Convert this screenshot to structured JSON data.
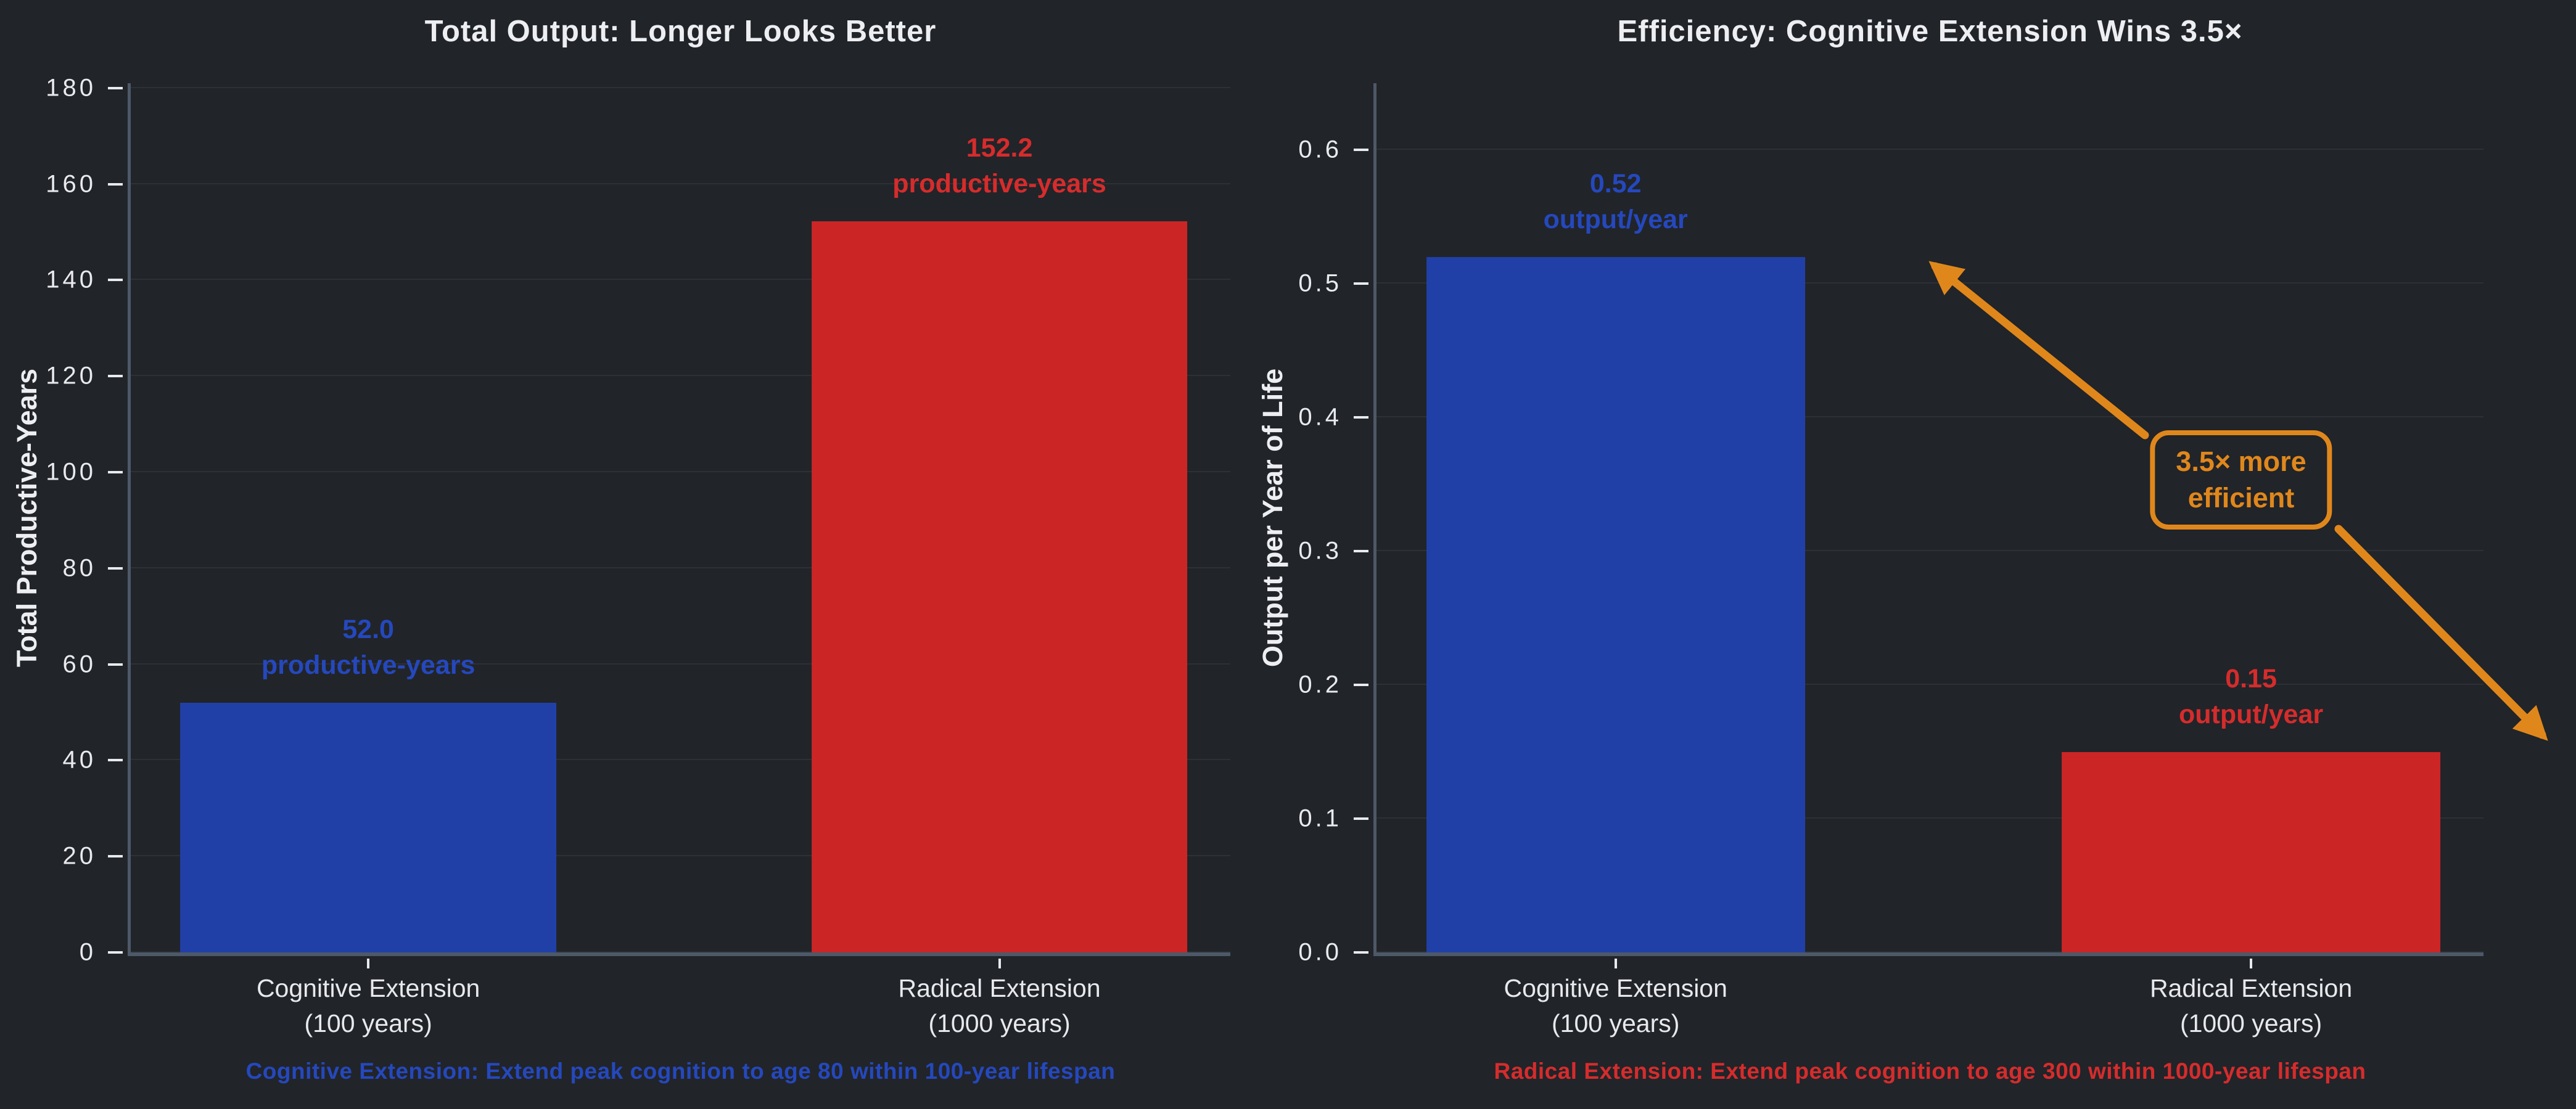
{
  "colors": {
    "background": "#212429",
    "axis": "#4d5968",
    "tick_text": "#e8eaed",
    "grid": "rgba(255,255,255,0.055)",
    "title_text": "#edeef1",
    "blue_bar": "#2140a7",
    "blue_text": "#2548bd",
    "red_bar": "#cb2526",
    "red_text": "#d62c2c",
    "orange": "#e0871c"
  },
  "chart_data": [
    {
      "type": "bar",
      "title": "Total Output: Longer Looks Better",
      "ylabel": "Total Productive-Years",
      "xlabel": "",
      "ylim": [
        0,
        181
      ],
      "grid": true,
      "legend": "none",
      "yticks": [
        {
          "value": 0,
          "label": "0"
        },
        {
          "value": 20,
          "label": "20"
        },
        {
          "value": 40,
          "label": "40"
        },
        {
          "value": 60,
          "label": "60"
        },
        {
          "value": 80,
          "label": "80"
        },
        {
          "value": 100,
          "label": "100"
        },
        {
          "value": 120,
          "label": "120"
        },
        {
          "value": 140,
          "label": "140"
        },
        {
          "value": 160,
          "label": "160"
        },
        {
          "value": 180,
          "label": "180"
        }
      ],
      "bars": [
        {
          "category_line1": "Cognitive Extension",
          "category_line2": "(100 years)",
          "value": 52.0,
          "label_line1": "52.0",
          "label_line2": "productive-years",
          "color_key": "blue"
        },
        {
          "category_line1": "Radical Extension",
          "category_line2": "(1000 years)",
          "value": 152.2,
          "label_line1": "152.2",
          "label_line2": "productive-years",
          "color_key": "red"
        }
      ],
      "caption": "Cognitive Extension: Extend peak cognition to age 80 within 100-year lifespan",
      "caption_color_key": "blue"
    },
    {
      "type": "bar",
      "title": "Efficiency: Cognitive Extension Wins 3.5×",
      "ylabel": "Output per Year of Life",
      "xlabel": "",
      "ylim": [
        0,
        0.65
      ],
      "grid": true,
      "legend": "none",
      "yticks": [
        {
          "value": 0.0,
          "label": "0.0"
        },
        {
          "value": 0.1,
          "label": "0.1"
        },
        {
          "value": 0.2,
          "label": "0.2"
        },
        {
          "value": 0.3,
          "label": "0.3"
        },
        {
          "value": 0.4,
          "label": "0.4"
        },
        {
          "value": 0.5,
          "label": "0.5"
        },
        {
          "value": 0.6,
          "label": "0.6"
        }
      ],
      "bars": [
        {
          "category_line1": "Cognitive Extension",
          "category_line2": "(100 years)",
          "value": 0.52,
          "label_line1": "0.52",
          "label_line2": "output/year",
          "color_key": "blue"
        },
        {
          "category_line1": "Radical Extension",
          "category_line2": "(1000 years)",
          "value": 0.15,
          "label_line1": "0.15",
          "label_line2": "output/year",
          "color_key": "red"
        }
      ],
      "annotation": {
        "line1": "3.5× more",
        "line2": "efficient"
      },
      "caption": "Radical Extension: Extend peak cognition to age 300 within 1000-year lifespan",
      "caption_color_key": "red"
    }
  ]
}
